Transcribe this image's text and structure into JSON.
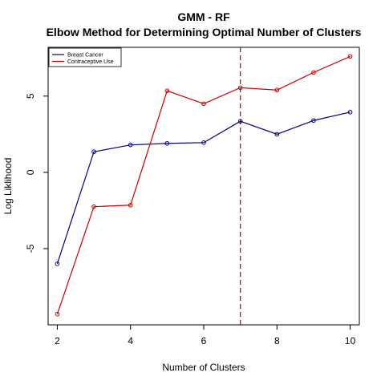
{
  "chart_data": {
    "type": "line",
    "title": "GMM - RF",
    "subtitle": "Elbow Method for Determining Optimal Number of Clusters",
    "xlabel": "Number of Clusters",
    "ylabel": "Log Liklihood",
    "x": [
      2,
      3,
      4,
      5,
      6,
      7,
      8,
      9,
      10
    ],
    "xlim": [
      1.75,
      10.25
    ],
    "ylim": [
      -10.0,
      8.2
    ],
    "x_ticks": [
      2,
      4,
      6,
      8,
      10
    ],
    "y_ticks": [
      -5,
      0,
      5
    ],
    "series": [
      {
        "name": "Breast Cancer",
        "color": "#00008b",
        "values": [
          -6.0,
          1.35,
          1.8,
          1.9,
          1.95,
          3.35,
          2.5,
          3.4,
          3.95
        ]
      },
      {
        "name": "Contraceptive Use",
        "color": "#cc0000",
        "values": [
          -9.3,
          -2.25,
          -2.15,
          5.35,
          4.5,
          5.55,
          5.4,
          6.55,
          7.6
        ]
      }
    ],
    "vline": {
      "x": 7,
      "color": "#cc0000",
      "style": "dashed"
    },
    "legend_placement": "top-left",
    "grid": false
  }
}
